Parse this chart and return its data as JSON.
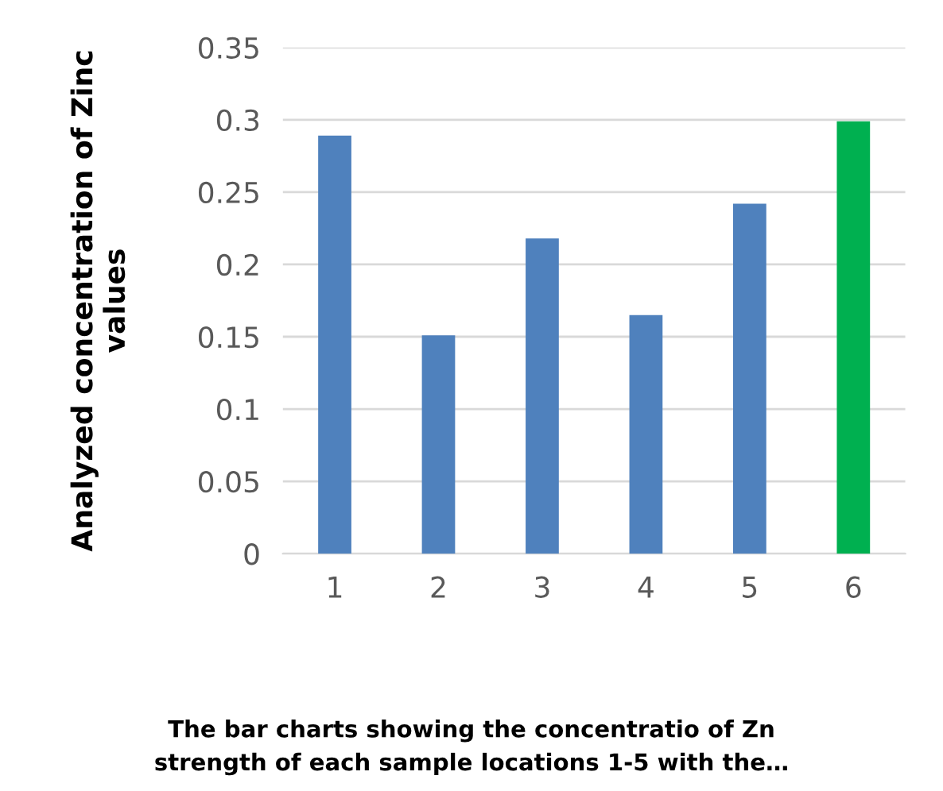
{
  "chart_data": {
    "type": "bar",
    "categories": [
      "1",
      "2",
      "3",
      "4",
      "5",
      "6"
    ],
    "values": [
      0.289,
      0.151,
      0.218,
      0.165,
      0.242,
      0.299
    ],
    "colors": [
      "#4f81bd",
      "#4f81bd",
      "#4f81bd",
      "#4f81bd",
      "#4f81bd",
      "#00b050"
    ],
    "ylim": [
      0,
      0.35
    ],
    "yticks": [
      0,
      0.05,
      0.1,
      0.15,
      0.2,
      0.25,
      0.3,
      0.35
    ],
    "grid": "y",
    "ylabel": "Analyzed concentration of Zinc\nvalues",
    "annotations": [
      "The bar charts showing the concentratio of Zn\nstrength of each sample locations 1-5 with the…"
    ]
  }
}
